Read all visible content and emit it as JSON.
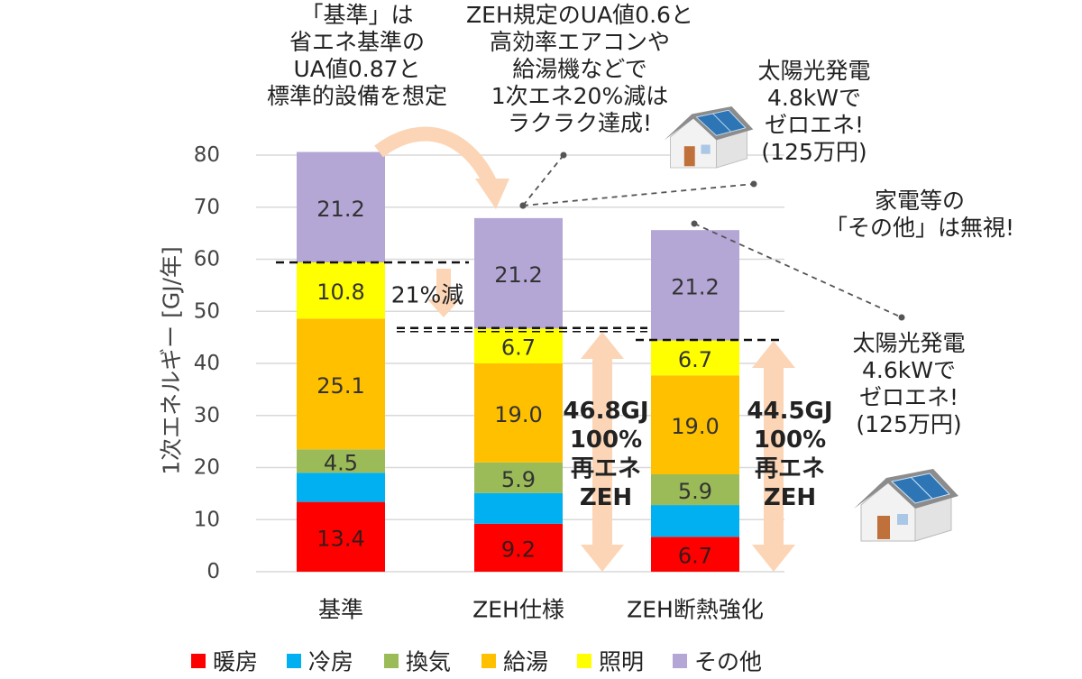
{
  "chart_data": {
    "type": "bar",
    "stacked": true,
    "title": "",
    "ylabel": "1次エネルギー [GJ/年]",
    "ylim": [
      0,
      80
    ],
    "yticks": [
      0,
      10,
      20,
      30,
      40,
      50,
      60,
      70,
      80
    ],
    "grid": true,
    "legend_position": "bottom",
    "categories": [
      "基準",
      "ZEH仕様",
      "ZEH断熱強化"
    ],
    "series": [
      {
        "name": "暖房",
        "color": "#ff0000",
        "values": [
          13.4,
          9.2,
          6.7
        ],
        "labels": [
          "13.4",
          "9.2",
          "6.7"
        ]
      },
      {
        "name": "冷房",
        "color": "#00b0f0",
        "values": [
          5.6,
          5.9,
          6.1
        ],
        "labels": [
          "",
          "",
          ""
        ]
      },
      {
        "name": "換気",
        "color": "#9bbb59",
        "values": [
          4.5,
          5.9,
          5.9
        ],
        "labels": [
          "4.5",
          "5.9",
          "5.9"
        ]
      },
      {
        "name": "給湯",
        "color": "#ffc000",
        "values": [
          25.1,
          19.0,
          19.0
        ],
        "labels": [
          "25.1",
          "19.0",
          "19.0"
        ]
      },
      {
        "name": "照明",
        "color": "#ffff00",
        "values": [
          10.8,
          6.7,
          6.7
        ],
        "labels": [
          "10.8",
          "6.7",
          "6.7"
        ]
      },
      {
        "name": "その他",
        "color": "#b4a7d6",
        "values": [
          21.2,
          21.2,
          21.2
        ],
        "labels": [
          "21.2",
          "21.2",
          "21.2"
        ]
      }
    ],
    "reference_lines": [
      {
        "category": 0,
        "value": 59.4
      },
      {
        "category": 1,
        "value": 46.8
      },
      {
        "category": 2,
        "value": 44.5
      }
    ],
    "reduction_label": "21%減",
    "zeh_arrows": [
      {
        "category": 1,
        "lines": [
          "46.8GJ",
          "100%",
          "再エネ",
          "ZEH"
        ]
      },
      {
        "category": 2,
        "lines": [
          "44.5GJ",
          "100%",
          "再エネ",
          "ZEH"
        ]
      }
    ]
  },
  "annotations": {
    "kijun_note": [
      "「基準」は",
      "省エネ基準の",
      "UA値0.87と",
      "標準的設備を想定"
    ],
    "zeh_note": [
      "ZEH規定のUA値0.6と",
      "高効率エアコンや",
      "給湯機などで",
      "1次エネ20%減は",
      "ラクラク達成!"
    ],
    "solar_top": [
      "太陽光発電",
      "4.8kWで",
      "ゼロエネ!",
      "(125万円)"
    ],
    "other_note": [
      "家電等の",
      "「その他」は無視!"
    ],
    "solar_bottom": [
      "太陽光発電",
      "4.6kWで",
      "ゼロエネ!",
      "(125万円)"
    ]
  },
  "colors": {
    "arrow": "#fbd5b5",
    "house_roof": "#8c8c8c",
    "house_wall": "#f2f2f2",
    "panel": "#2e75b6",
    "door": "#c0703a"
  }
}
